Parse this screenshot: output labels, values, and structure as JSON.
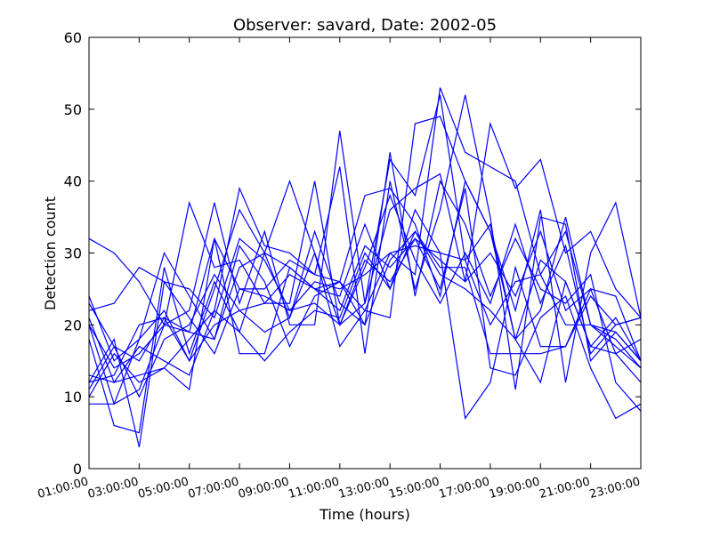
{
  "chart_data": {
    "type": "line",
    "title": "Observer: savard, Date: 2002-05",
    "xlabel": "Time (hours)",
    "ylabel": "Detection count",
    "xlim": [
      1,
      23
    ],
    "ylim": [
      0,
      60
    ],
    "x_ticks": [
      "01:00:00",
      "03:00:00",
      "05:00:00",
      "07:00:00",
      "09:00:00",
      "11:00:00",
      "13:00:00",
      "15:00:00",
      "17:00:00",
      "19:00:00",
      "21:00:00",
      "23:00:00"
    ],
    "x_tick_values": [
      1,
      3,
      5,
      7,
      9,
      11,
      13,
      15,
      17,
      19,
      21,
      23
    ],
    "y_ticks": [
      0,
      10,
      20,
      30,
      40,
      50,
      60
    ],
    "line_color": "#0000ff",
    "grid": false,
    "legend": "none",
    "series": [
      {
        "x": [
          1,
          2,
          3,
          4,
          5,
          6,
          7,
          8,
          9,
          10,
          11,
          12,
          13,
          14,
          15,
          16,
          17,
          18,
          19,
          20,
          21,
          22,
          23
        ],
        "values": [
          32,
          30,
          26,
          20,
          37,
          28,
          29,
          23,
          23,
          40,
          20,
          23,
          43,
          38,
          52,
          29,
          20,
          26,
          27,
          33,
          20,
          19,
          15
        ]
      },
      {
        "x": [
          1,
          2,
          3,
          4,
          5,
          6,
          7,
          8,
          9,
          10,
          11,
          12,
          13,
          14,
          15,
          16,
          17,
          18,
          19,
          20,
          21,
          22,
          23
        ],
        "values": [
          22,
          23,
          28,
          26,
          25,
          21,
          32,
          29,
          22,
          26,
          25,
          27,
          30,
          27,
          53,
          44,
          42,
          40,
          27,
          20,
          20,
          18,
          14
        ]
      },
      {
        "x": [
          1,
          2,
          3,
          4,
          5,
          6,
          7,
          8,
          9,
          10,
          11,
          12,
          13,
          14,
          15,
          16,
          17,
          18,
          19,
          20,
          21,
          22,
          23
        ],
        "values": [
          20,
          9,
          11,
          20,
          22,
          37,
          23,
          33,
          20,
          20,
          47,
          23,
          36,
          39,
          41,
          26,
          48,
          39,
          43,
          30,
          33,
          25,
          21
        ]
      },
      {
        "x": [
          1,
          2,
          3,
          4,
          5,
          6,
          7,
          8,
          9,
          10,
          11,
          12,
          13,
          14,
          15,
          16,
          17,
          18,
          19,
          20,
          21,
          22,
          23
        ],
        "values": [
          9,
          9,
          18,
          22,
          15,
          25,
          36,
          30,
          40,
          30,
          17,
          22,
          21,
          48,
          49,
          40,
          33,
          18,
          22,
          35,
          20,
          17,
          14
        ]
      },
      {
        "x": [
          1,
          2,
          3,
          4,
          5,
          6,
          7,
          8,
          9,
          10,
          11,
          12,
          13,
          14,
          15,
          16,
          17,
          18,
          19,
          20,
          21,
          22,
          23
        ],
        "values": [
          24,
          15,
          18,
          30,
          24,
          18,
          31,
          26,
          17,
          24,
          26,
          38,
          39,
          34,
          24,
          40,
          33,
          22,
          36,
          12,
          30,
          37,
          21
        ]
      },
      {
        "x": [
          1,
          2,
          3,
          4,
          5,
          6,
          7,
          8,
          9,
          10,
          11,
          12,
          13,
          14,
          15,
          16,
          17,
          18,
          19,
          20,
          21,
          22,
          23
        ],
        "values": [
          12,
          18,
          3,
          26,
          21,
          16,
          25,
          25,
          29,
          27,
          42,
          16,
          40,
          25,
          36,
          52,
          35,
          11,
          35,
          34,
          15,
          19,
          15
        ]
      },
      {
        "x": [
          1,
          2,
          3,
          4,
          5,
          6,
          7,
          8,
          9,
          10,
          11,
          12,
          13,
          14,
          15,
          16,
          17,
          18,
          19,
          20,
          21,
          22,
          23
        ],
        "values": [
          18,
          6,
          5,
          28,
          16,
          26,
          19,
          30,
          21,
          33,
          23,
          20,
          44,
          24,
          40,
          34,
          24,
          32,
          25,
          23,
          27,
          12,
          8
        ]
      },
      {
        "x": [
          1,
          2,
          3,
          4,
          5,
          6,
          7,
          8,
          9,
          10,
          11,
          12,
          13,
          14,
          15,
          16,
          17,
          18,
          19,
          20,
          21,
          22,
          23
        ],
        "values": [
          10,
          16,
          12,
          14,
          18,
          22,
          39,
          31,
          30,
          27,
          26,
          20,
          29,
          33,
          28,
          28,
          16,
          16,
          16,
          17,
          24,
          20,
          21
        ]
      },
      {
        "x": [
          1,
          2,
          3,
          4,
          5,
          6,
          7,
          8,
          9,
          10,
          11,
          12,
          13,
          14,
          15,
          16,
          17,
          18,
          19,
          20,
          21,
          22,
          23
        ],
        "values": [
          13,
          12,
          13,
          14,
          11,
          32,
          16,
          16,
          28,
          25,
          24,
          34,
          25,
          36,
          30,
          7,
          12,
          28,
          17,
          17,
          25,
          16,
          18
        ]
      },
      {
        "x": [
          1,
          2,
          3,
          4,
          5,
          6,
          7,
          8,
          9,
          10,
          11,
          12,
          13,
          14,
          15,
          16,
          17,
          18,
          19,
          20,
          21,
          22,
          23
        ],
        "values": [
          11,
          17,
          10,
          18,
          20,
          27,
          22,
          19,
          21,
          30,
          20,
          28,
          38,
          29,
          23,
          30,
          23,
          34,
          23,
          31,
          16,
          20,
          21
        ]
      },
      {
        "x": [
          1,
          2,
          3,
          4,
          5,
          6,
          7,
          8,
          9,
          10,
          11,
          12,
          13,
          14,
          15,
          16,
          17,
          18,
          19,
          20,
          21,
          22,
          23
        ],
        "values": [
          21,
          12,
          17,
          15,
          13,
          22,
          19,
          15,
          19,
          22,
          21,
          30,
          25,
          33,
          27,
          25,
          22,
          18,
          12,
          26,
          17,
          16,
          12
        ]
      },
      {
        "x": [
          1,
          2,
          3,
          4,
          5,
          6,
          7,
          8,
          9,
          10,
          11,
          12,
          13,
          14,
          15,
          16,
          17,
          18,
          19,
          20,
          21,
          22,
          23
        ],
        "values": [
          23,
          17,
          15,
          21,
          15,
          20,
          22,
          23,
          27,
          25,
          22,
          31,
          28,
          32,
          25,
          39,
          14,
          13,
          21,
          24,
          14,
          7,
          9
        ]
      },
      {
        "x": [
          1,
          2,
          3,
          4,
          5,
          6,
          7,
          8,
          9,
          10,
          11,
          12,
          13,
          14,
          15,
          16,
          17,
          18,
          19,
          20,
          21,
          22,
          23
        ],
        "values": [
          12,
          13,
          20,
          21,
          19,
          32,
          25,
          24,
          22,
          23,
          20,
          29,
          26,
          32,
          29,
          26,
          30,
          24,
          33,
          22,
          25,
          24,
          15
        ]
      },
      {
        "x": [
          1,
          2,
          3,
          4,
          5,
          6,
          7,
          8,
          9,
          10,
          11,
          12,
          13,
          14,
          15,
          16,
          17,
          18,
          19,
          20,
          21,
          22,
          23
        ],
        "values": [
          20,
          14,
          16,
          20,
          19,
          18,
          28,
          30,
          28,
          25,
          26,
          22,
          30,
          31,
          30,
          29,
          34,
          18,
          29,
          26,
          17,
          21,
          15
        ]
      }
    ]
  }
}
